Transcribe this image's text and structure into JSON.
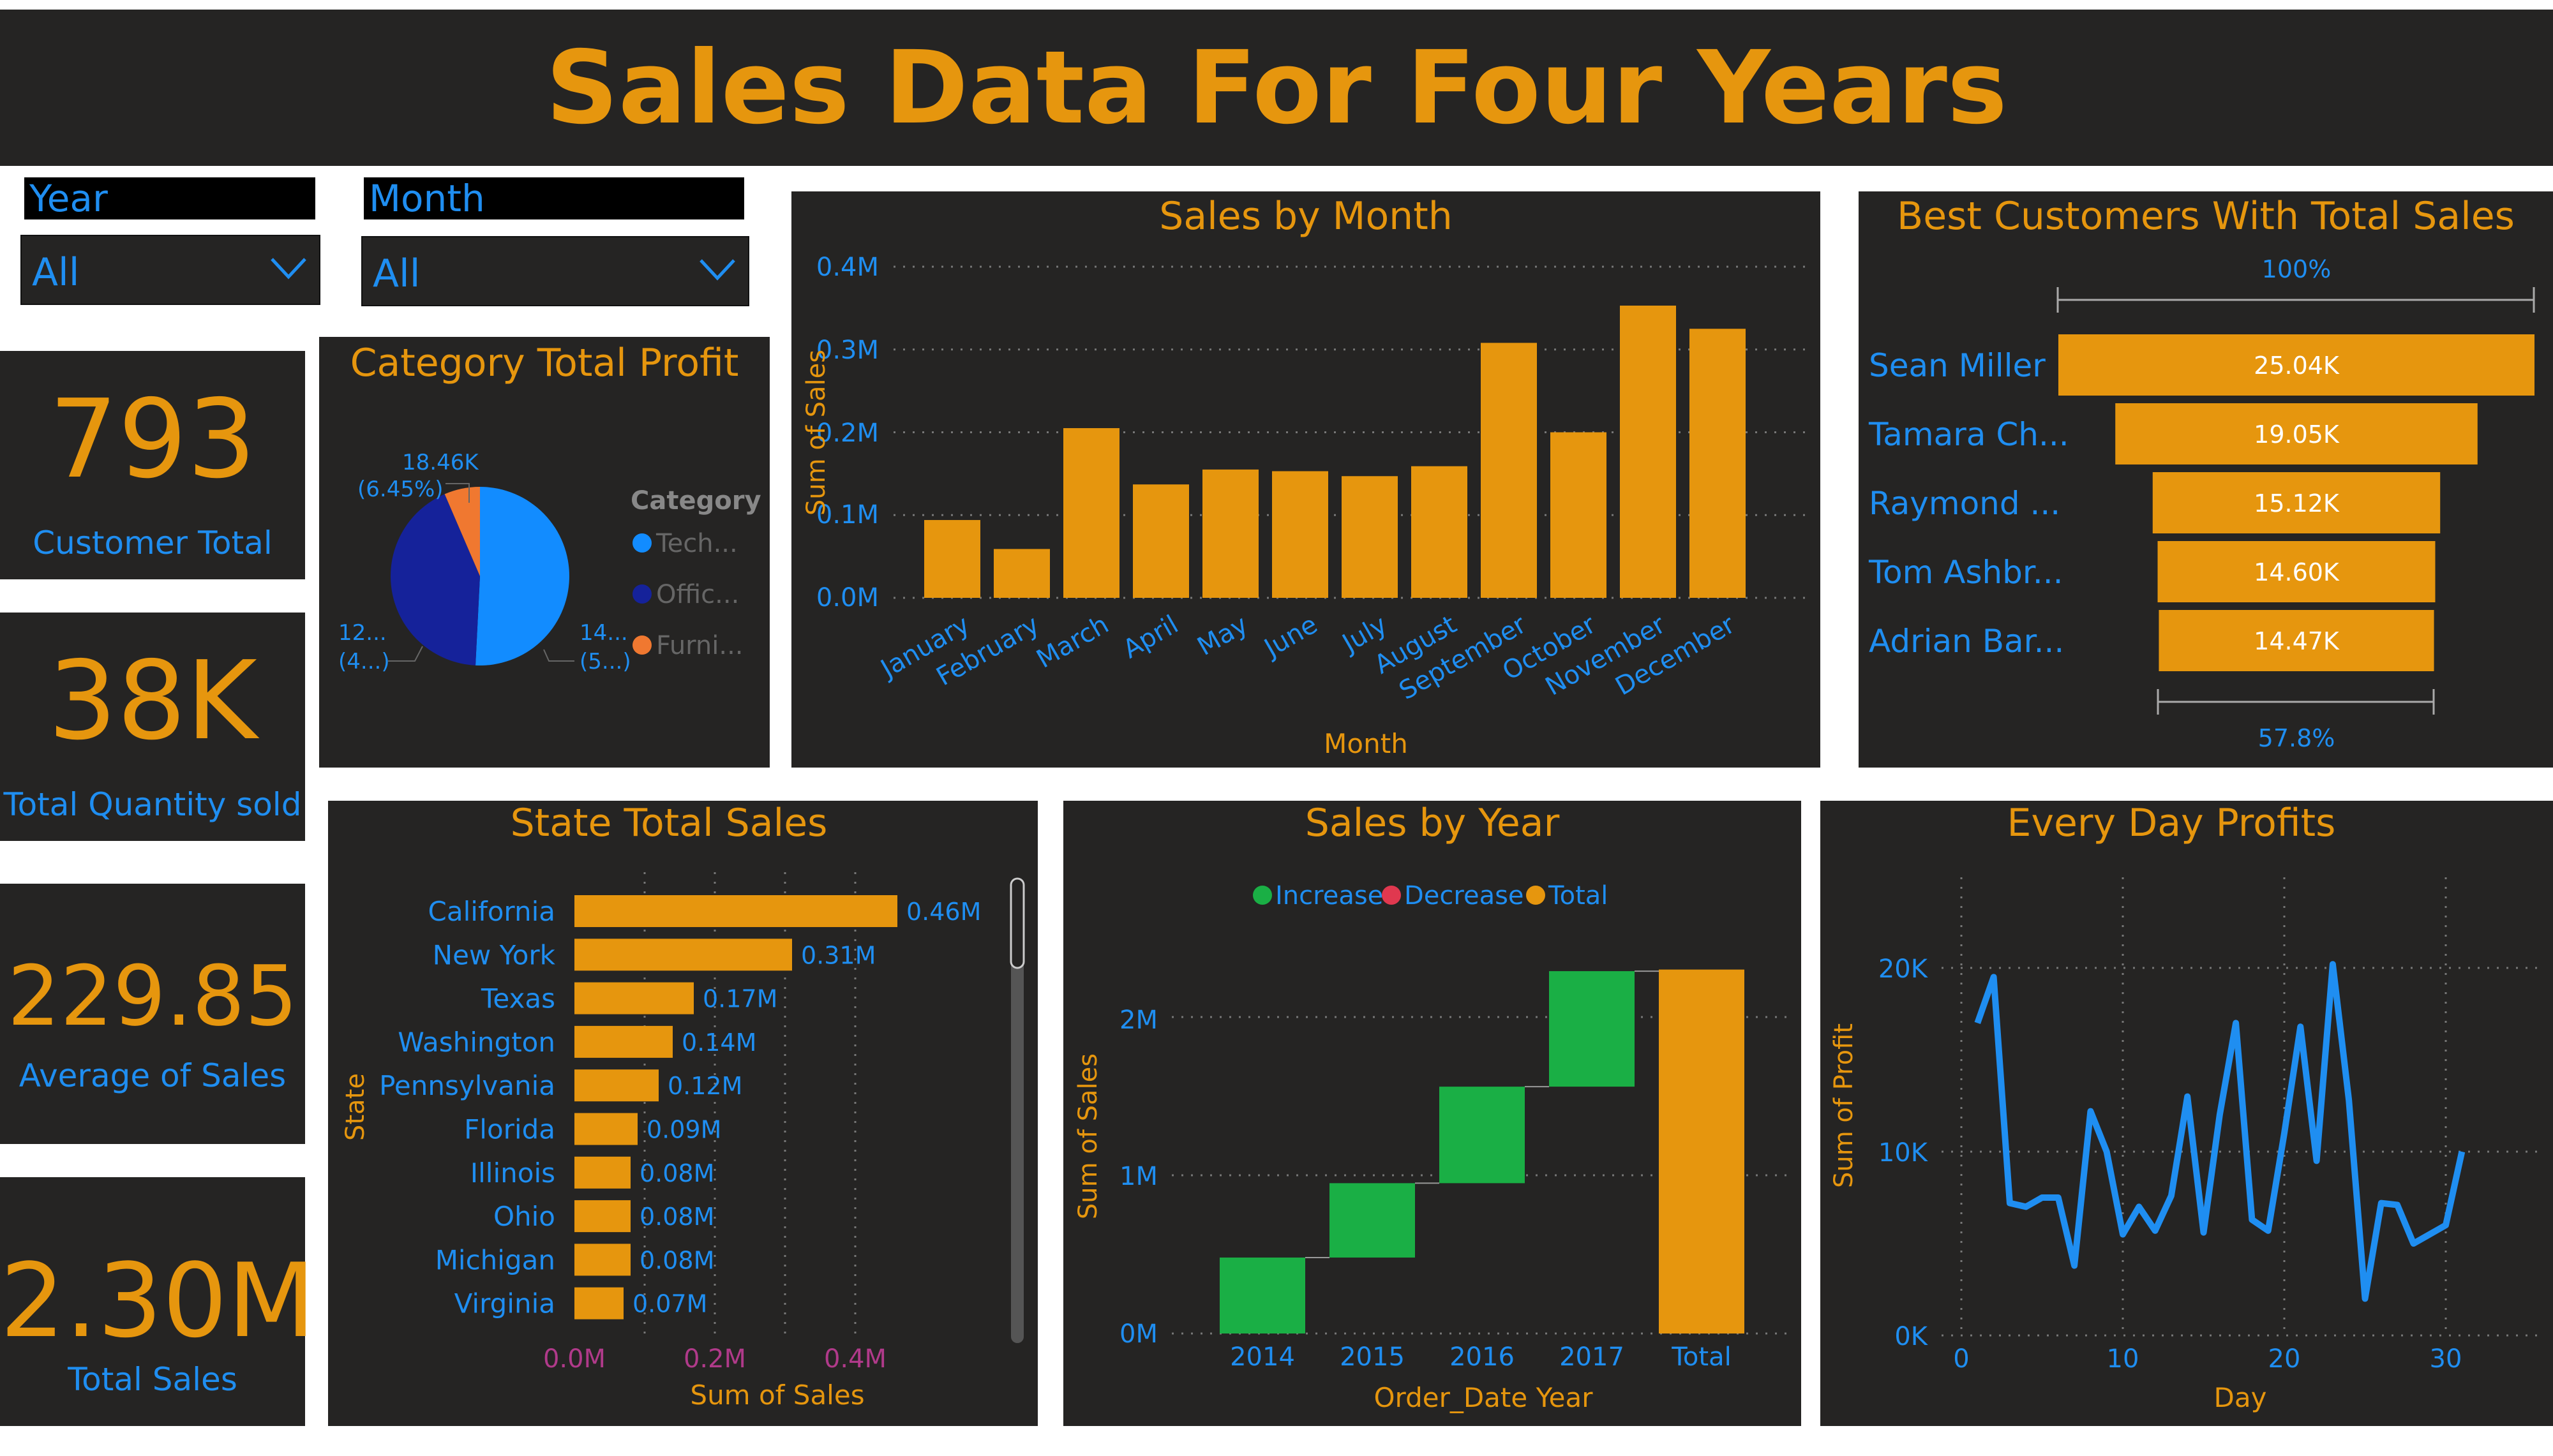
{
  "title": "Sales Data For Four Years",
  "colors": {
    "accent": "#e6960e",
    "label": "#1f8ef1",
    "panel": "#252423",
    "increase": "#1aaf45",
    "decrease": "#e0384f",
    "office": "#15229a",
    "tech": "#128cff",
    "furniture": "#f07830"
  },
  "slicers": {
    "year": {
      "label": "Year",
      "value": "All",
      "icon": "chevron-down-icon"
    },
    "month": {
      "label": "Month",
      "value": "All",
      "icon": "chevron-down-icon"
    }
  },
  "kpis": [
    {
      "value": "793",
      "label": "Customer Total"
    },
    {
      "value": "38K",
      "label": "Total Quantity sold"
    },
    {
      "value": "229.85",
      "label": "Average of Sales"
    },
    {
      "value": "2.30M",
      "label": "Total Sales"
    }
  ],
  "category_profit": {
    "title": "Category Total Profit",
    "legend_title": "Category",
    "legend": [
      "Tech...",
      "Offic...",
      "Furni..."
    ],
    "labels": {
      "top": "18.46K",
      "top_pct": "(6.45%)",
      "left": "12...",
      "left_pct": "(4...)",
      "right": "14...",
      "right_pct": "(5...)"
    },
    "chart_data": {
      "type": "pie",
      "categories": [
        "Technology",
        "Office Supplies",
        "Furniture"
      ],
      "values": [
        145,
        122,
        18.46
      ]
    }
  },
  "sales_by_month": {
    "title": "Sales by Month",
    "xlabel": "Month",
    "ylabel": "Sum of Sales",
    "yticks": [
      "0.4M",
      "0.3M",
      "0.2M",
      "0.1M",
      "0.0M"
    ],
    "chart_data": {
      "type": "bar",
      "categories": [
        "January",
        "February",
        "March",
        "April",
        "May",
        "June",
        "July",
        "August",
        "September",
        "October",
        "November",
        "December"
      ],
      "values": [
        0.094,
        0.059,
        0.205,
        0.137,
        0.155,
        0.153,
        0.147,
        0.159,
        0.308,
        0.2,
        0.353,
        0.325
      ],
      "ylim": [
        0,
        0.4
      ]
    }
  },
  "best_customers": {
    "title": "Best Customers With Total Sales",
    "top_pct": "100%",
    "bottom_pct": "57.8%",
    "names": [
      "Sean Miller",
      "Tamara Ch...",
      "Raymond ...",
      "Tom Ashbr...",
      "Adrian Bar..."
    ],
    "labels": [
      "25.04K",
      "19.05K",
      "15.12K",
      "14.60K",
      "14.47K"
    ],
    "chart_data": {
      "type": "bar",
      "categories": [
        "Sean Miller",
        "Tamara Ch...",
        "Raymond ...",
        "Tom Ashbr...",
        "Adrian Bar..."
      ],
      "values": [
        25.04,
        19.05,
        15.12,
        14.6,
        14.47
      ]
    }
  },
  "state_sales": {
    "title": "State Total Sales",
    "xlabel": "Sum of Sales",
    "ylabel": "State",
    "xticks": [
      "0.0M",
      "0.2M",
      "0.4M"
    ],
    "states": [
      "California",
      "New York",
      "Texas",
      "Washington",
      "Pennsylvania",
      "Florida",
      "Illinois",
      "Ohio",
      "Michigan",
      "Virginia"
    ],
    "labels": [
      "0.46M",
      "0.31M",
      "0.17M",
      "0.14M",
      "0.12M",
      "0.09M",
      "0.08M",
      "0.08M",
      "0.08M",
      "0.07M"
    ],
    "chart_data": {
      "type": "bar",
      "categories": [
        "California",
        "New York",
        "Texas",
        "Washington",
        "Pennsylvania",
        "Florida",
        "Illinois",
        "Ohio",
        "Michigan",
        "Virginia"
      ],
      "values": [
        0.46,
        0.31,
        0.17,
        0.14,
        0.12,
        0.09,
        0.08,
        0.08,
        0.08,
        0.07
      ],
      "xlim": [
        0,
        0.5
      ]
    }
  },
  "sales_by_year": {
    "title": "Sales by Year",
    "xlabel": "Order_Date Year",
    "ylabel": "Sum of Sales",
    "legend": [
      "Increase",
      "Decrease",
      "Total"
    ],
    "yticks": [
      "2M",
      "1M",
      "0M"
    ],
    "categories": [
      "2014",
      "2015",
      "2016",
      "2017",
      "Total"
    ],
    "chart_data": {
      "type": "bar",
      "categories": [
        "2014",
        "2015",
        "2016",
        "2017",
        "Total"
      ],
      "values": [
        0.48,
        0.47,
        0.61,
        0.73,
        2.3
      ],
      "ylim": [
        0,
        2.4
      ]
    }
  },
  "day_profits": {
    "title": "Every Day Profits",
    "xlabel": "Day",
    "ylabel": "Sum of Profit",
    "yticks": [
      "20K",
      "10K",
      "0K"
    ],
    "xticks": [
      "0",
      "10",
      "20",
      "30"
    ],
    "chart_data": {
      "type": "line",
      "x": [
        1,
        2,
        3,
        4,
        5,
        6,
        7,
        8,
        9,
        10,
        11,
        12,
        13,
        14,
        15,
        16,
        17,
        18,
        19,
        20,
        21,
        22,
        23,
        24,
        25,
        26,
        27,
        28,
        29,
        30,
        31
      ],
      "y": [
        17000,
        19500,
        7200,
        7000,
        7500,
        7500,
        3800,
        12200,
        10000,
        5500,
        7000,
        5700,
        7600,
        13000,
        5600,
        12000,
        17000,
        6300,
        5700,
        11000,
        16800,
        9500,
        20200,
        12800,
        2000,
        7200,
        7100,
        5000,
        5500,
        6000,
        10000
      ],
      "xlim": [
        0,
        31
      ],
      "ylim": [
        0,
        23000
      ]
    }
  }
}
